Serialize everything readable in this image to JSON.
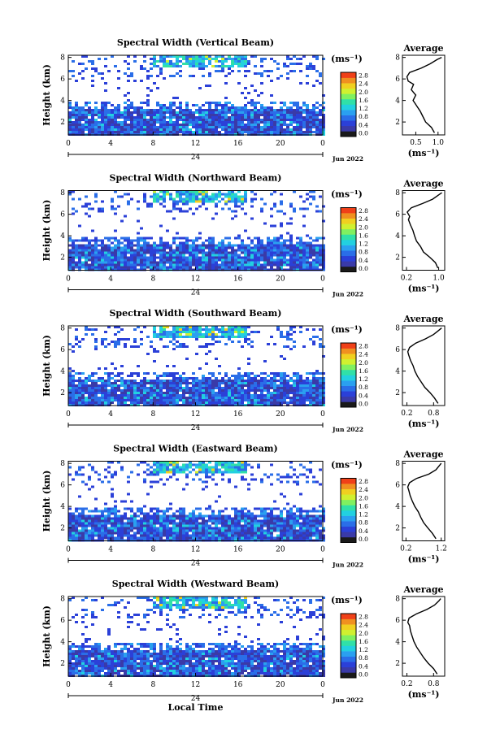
{
  "chart_data": {
    "type": "heatmap",
    "colormap": [
      "#1a1a1a",
      "#3a3aa8",
      "#2b40d8",
      "#2a6ee8",
      "#2aa0f0",
      "#22d0e0",
      "#30e0a8",
      "#80f060",
      "#d0f030",
      "#f0d020",
      "#f09020",
      "#f04018"
    ],
    "x_label": "Local Time",
    "date_center_label": "24",
    "date_right_label": "Jun 2022",
    "x_ticks": [
      "0",
      "4",
      "8",
      "12",
      "16",
      "20",
      "0"
    ],
    "y_label": "Height (km)",
    "y_ticks": [
      "2",
      "4",
      "6",
      "8"
    ],
    "ylim": [
      0.8,
      8.2
    ],
    "colorbar_unit": "(ms⁻¹)",
    "colorbar_ticks": [
      "0.0",
      "0.4",
      "0.8",
      "1.2",
      "1.6",
      "2.0",
      "2.4",
      "2.8"
    ],
    "avg_title": "Average",
    "avg_unit": "(ms⁻¹)",
    "panels": [
      {
        "title": "Spectral Width (Vertical Beam)",
        "avg_xlim": [
          0.2,
          1.15
        ],
        "avg_xticks": [
          "0.5",
          "1.0"
        ],
        "avg_xtick_values": [
          0.5,
          1.0
        ],
        "avg_profile": [
          [
            0.92,
            1.0
          ],
          [
            0.85,
            1.5
          ],
          [
            0.72,
            2.0
          ],
          [
            0.66,
            2.5
          ],
          [
            0.6,
            3.0
          ],
          [
            0.52,
            3.5
          ],
          [
            0.44,
            4.0
          ],
          [
            0.5,
            4.5
          ],
          [
            0.4,
            5.0
          ],
          [
            0.45,
            5.5
          ],
          [
            0.33,
            5.8
          ],
          [
            0.3,
            6.2
          ],
          [
            0.36,
            6.6
          ],
          [
            0.62,
            7.0
          ],
          [
            0.82,
            7.4
          ],
          [
            0.98,
            7.8
          ],
          [
            1.08,
            8.0
          ]
        ]
      },
      {
        "title": "Spectral Width (Northward Beam)",
        "avg_xlim": [
          0.1,
          1.15
        ],
        "avg_xticks": [
          "0.2",
          "1.0"
        ],
        "avg_xtick_values": [
          0.2,
          1.0
        ],
        "avg_profile": [
          [
            0.98,
            1.0
          ],
          [
            0.92,
            1.5
          ],
          [
            0.78,
            2.0
          ],
          [
            0.62,
            2.5
          ],
          [
            0.55,
            3.0
          ],
          [
            0.45,
            3.5
          ],
          [
            0.4,
            4.0
          ],
          [
            0.36,
            4.5
          ],
          [
            0.3,
            5.0
          ],
          [
            0.25,
            5.5
          ],
          [
            0.28,
            5.8
          ],
          [
            0.22,
            6.2
          ],
          [
            0.32,
            6.6
          ],
          [
            0.6,
            7.0
          ],
          [
            0.85,
            7.4
          ],
          [
            1.0,
            7.8
          ],
          [
            1.08,
            8.0
          ]
        ]
      },
      {
        "title": "Spectral Width (Southward Beam)",
        "avg_xlim": [
          0.1,
          1.05
        ],
        "avg_xticks": [
          "0.2",
          "0.8"
        ],
        "avg_xtick_values": [
          0.2,
          0.8
        ],
        "avg_profile": [
          [
            0.9,
            1.0
          ],
          [
            0.82,
            1.5
          ],
          [
            0.72,
            2.0
          ],
          [
            0.6,
            2.5
          ],
          [
            0.52,
            3.0
          ],
          [
            0.44,
            3.5
          ],
          [
            0.38,
            4.0
          ],
          [
            0.34,
            4.5
          ],
          [
            0.28,
            5.0
          ],
          [
            0.24,
            5.5
          ],
          [
            0.22,
            5.8
          ],
          [
            0.26,
            6.2
          ],
          [
            0.4,
            6.6
          ],
          [
            0.62,
            7.0
          ],
          [
            0.8,
            7.4
          ],
          [
            0.92,
            7.8
          ],
          [
            0.98,
            8.0
          ]
        ]
      },
      {
        "title": "Spectral Width (Eastward Beam)",
        "avg_xlim": [
          0.1,
          1.3
        ],
        "avg_xticks": [
          "0.2",
          "1.2"
        ],
        "avg_xtick_values": [
          0.2,
          1.2
        ],
        "avg_profile": [
          [
            1.05,
            1.0
          ],
          [
            0.95,
            1.5
          ],
          [
            0.82,
            2.0
          ],
          [
            0.7,
            2.5
          ],
          [
            0.62,
            3.0
          ],
          [
            0.55,
            3.5
          ],
          [
            0.45,
            4.0
          ],
          [
            0.38,
            4.5
          ],
          [
            0.32,
            5.0
          ],
          [
            0.28,
            5.5
          ],
          [
            0.25,
            5.8
          ],
          [
            0.3,
            6.2
          ],
          [
            0.5,
            6.6
          ],
          [
            0.85,
            7.0
          ],
          [
            1.05,
            7.4
          ],
          [
            1.15,
            7.8
          ],
          [
            1.2,
            8.0
          ]
        ]
      },
      {
        "title": "Spectral Width (Westward Beam)",
        "avg_xlim": [
          0.1,
          1.05
        ],
        "avg_xticks": [
          "0.2",
          "0.8"
        ],
        "avg_xtick_values": [
          0.2,
          0.8
        ],
        "avg_profile": [
          [
            0.88,
            1.0
          ],
          [
            0.8,
            1.5
          ],
          [
            0.68,
            2.0
          ],
          [
            0.58,
            2.5
          ],
          [
            0.5,
            3.0
          ],
          [
            0.42,
            3.5
          ],
          [
            0.36,
            4.0
          ],
          [
            0.32,
            4.5
          ],
          [
            0.28,
            5.0
          ],
          [
            0.26,
            5.5
          ],
          [
            0.22,
            5.8
          ],
          [
            0.25,
            6.2
          ],
          [
            0.42,
            6.6
          ],
          [
            0.65,
            7.0
          ],
          [
            0.82,
            7.4
          ],
          [
            0.92,
            7.8
          ],
          [
            0.96,
            8.0
          ]
        ]
      }
    ]
  }
}
